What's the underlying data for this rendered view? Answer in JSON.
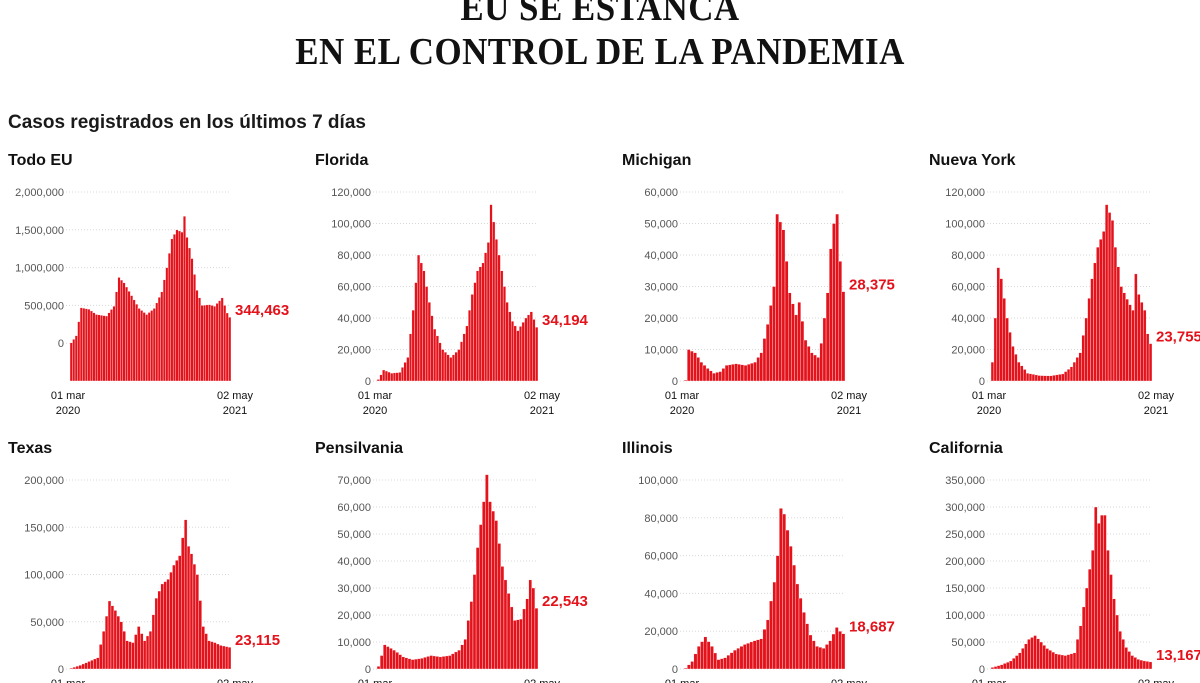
{
  "header": {
    "title_line1": "EU SE ESTANCA",
    "title_line2": "EN EL CONTROL DE LA PANDEMIA",
    "subtitle": "Casos registrados en los últimos 7 días"
  },
  "colors": {
    "bar": "#e3121b",
    "label": "#e3121b"
  },
  "x_axis": {
    "start": "01 mar",
    "start_year": "2020",
    "end": "02 may",
    "end_year": "2021"
  },
  "chart_data": [
    {
      "type": "bar",
      "title": "Todo EU",
      "last_value_label": "344,463",
      "ylim": [
        -500000,
        2000000
      ],
      "yticks": [
        0,
        500000,
        1000000,
        1500000,
        2000000
      ],
      "ytick_labels": [
        "0",
        "500,000",
        "1,000,000",
        "1,500,000",
        "2,000,000"
      ],
      "anchors": [
        [
          0,
          5000
        ],
        [
          2,
          100000
        ],
        [
          4,
          470000
        ],
        [
          7,
          450000
        ],
        [
          10,
          380000
        ],
        [
          14,
          360000
        ],
        [
          17,
          490000
        ],
        [
          19,
          870000
        ],
        [
          21,
          800000
        ],
        [
          24,
          630000
        ],
        [
          27,
          460000
        ],
        [
          30,
          380000
        ],
        [
          33,
          460000
        ],
        [
          36,
          680000
        ],
        [
          38,
          1000000
        ],
        [
          40,
          1380000
        ],
        [
          42,
          1500000
        ],
        [
          44,
          1470000
        ],
        [
          45,
          1680000
        ],
        [
          46,
          1400000
        ],
        [
          48,
          1120000
        ],
        [
          50,
          700000
        ],
        [
          52,
          500000
        ],
        [
          55,
          510000
        ],
        [
          57,
          490000
        ],
        [
          60,
          600000
        ],
        [
          62,
          400000
        ],
        [
          63,
          344463
        ]
      ],
      "values": []
    },
    {
      "type": "bar",
      "title": "Florida",
      "last_value_label": "34,194",
      "ylim": [
        0,
        120000
      ],
      "yticks": [
        0,
        20000,
        40000,
        60000,
        80000,
        100000,
        120000
      ],
      "ytick_labels": [
        "0",
        "20,000",
        "40,000",
        "60,000",
        "80,000",
        "100,000",
        "120,000"
      ],
      "anchors": [
        [
          0,
          1000
        ],
        [
          2,
          7000
        ],
        [
          5,
          5000
        ],
        [
          8,
          5500
        ],
        [
          11,
          15000
        ],
        [
          13,
          45000
        ],
        [
          15,
          80000
        ],
        [
          17,
          70000
        ],
        [
          19,
          50000
        ],
        [
          21,
          33000
        ],
        [
          24,
          20000
        ],
        [
          27,
          15000
        ],
        [
          30,
          20000
        ],
        [
          33,
          35000
        ],
        [
          35,
          55000
        ],
        [
          37,
          70000
        ],
        [
          39,
          75000
        ],
        [
          41,
          88000
        ],
        [
          42,
          112000
        ],
        [
          44,
          90000
        ],
        [
          46,
          70000
        ],
        [
          48,
          50000
        ],
        [
          50,
          38000
        ],
        [
          52,
          32000
        ],
        [
          55,
          40000
        ],
        [
          57,
          44000
        ],
        [
          59,
          34194
        ]
      ],
      "values": []
    },
    {
      "type": "bar",
      "title": "Michigan",
      "last_value_label": "28,375",
      "ylim": [
        0,
        60000
      ],
      "yticks": [
        0,
        10000,
        20000,
        30000,
        40000,
        50000,
        60000
      ],
      "ytick_labels": [
        "0",
        "10,000",
        "20,000",
        "30,000",
        "40,000",
        "50,000",
        "60,000"
      ],
      "anchors": [
        [
          0,
          300
        ],
        [
          1,
          10000
        ],
        [
          3,
          9000
        ],
        [
          5,
          6000
        ],
        [
          7,
          4000
        ],
        [
          9,
          2500
        ],
        [
          11,
          3000
        ],
        [
          13,
          5000
        ],
        [
          16,
          5500
        ],
        [
          19,
          5000
        ],
        [
          22,
          6000
        ],
        [
          24,
          9000
        ],
        [
          26,
          18000
        ],
        [
          28,
          30000
        ],
        [
          29,
          53000
        ],
        [
          31,
          48000
        ],
        [
          33,
          28000
        ],
        [
          35,
          21000
        ],
        [
          36,
          25000
        ],
        [
          38,
          13000
        ],
        [
          40,
          9000
        ],
        [
          42,
          7500
        ],
        [
          43,
          12000
        ],
        [
          45,
          28000
        ],
        [
          46,
          42000
        ],
        [
          47,
          50000
        ],
        [
          48,
          53000
        ],
        [
          49,
          38000
        ],
        [
          50,
          28375
        ]
      ],
      "values": []
    },
    {
      "type": "bar",
      "title": "Nueva York",
      "last_value_label": "23,755",
      "ylim": [
        0,
        120000
      ],
      "yticks": [
        0,
        20000,
        40000,
        60000,
        80000,
        100000,
        120000
      ],
      "ytick_labels": [
        "0",
        "20,000",
        "40,000",
        "60,000",
        "80,000",
        "100,000",
        "120,000"
      ],
      "anchors": [
        [
          0,
          12000
        ],
        [
          1,
          40000
        ],
        [
          2,
          72000
        ],
        [
          3,
          65000
        ],
        [
          5,
          40000
        ],
        [
          7,
          22000
        ],
        [
          9,
          12000
        ],
        [
          12,
          5000
        ],
        [
          16,
          3500
        ],
        [
          20,
          3300
        ],
        [
          24,
          4500
        ],
        [
          27,
          9000
        ],
        [
          30,
          18000
        ],
        [
          32,
          40000
        ],
        [
          34,
          65000
        ],
        [
          36,
          85000
        ],
        [
          38,
          95000
        ],
        [
          39,
          112000
        ],
        [
          41,
          102000
        ],
        [
          42,
          85000
        ],
        [
          44,
          60000
        ],
        [
          46,
          52000
        ],
        [
          48,
          45000
        ],
        [
          49,
          68000
        ],
        [
          50,
          55000
        ],
        [
          52,
          45000
        ],
        [
          53,
          30000
        ],
        [
          54,
          23755
        ]
      ],
      "values": []
    },
    {
      "type": "bar",
      "title": "Texas",
      "last_value_label": "23,115",
      "ylim": [
        0,
        200000
      ],
      "yticks": [
        0,
        50000,
        100000,
        150000,
        200000
      ],
      "ytick_labels": [
        "0",
        "50,000",
        "100,000",
        "150,000",
        "200,000"
      ],
      "anchors": [
        [
          0,
          1000
        ],
        [
          3,
          4000
        ],
        [
          6,
          8000
        ],
        [
          9,
          12000
        ],
        [
          11,
          40000
        ],
        [
          13,
          72000
        ],
        [
          15,
          62000
        ],
        [
          17,
          50000
        ],
        [
          19,
          30000
        ],
        [
          21,
          28000
        ],
        [
          23,
          45000
        ],
        [
          25,
          30000
        ],
        [
          27,
          40000
        ],
        [
          29,
          75000
        ],
        [
          31,
          90000
        ],
        [
          33,
          95000
        ],
        [
          35,
          110000
        ],
        [
          37,
          120000
        ],
        [
          39,
          158000
        ],
        [
          40,
          130000
        ],
        [
          41,
          122000
        ],
        [
          43,
          100000
        ],
        [
          45,
          45000
        ],
        [
          47,
          30000
        ],
        [
          49,
          28000
        ],
        [
          51,
          25000
        ],
        [
          54,
          23115
        ]
      ],
      "values": []
    },
    {
      "type": "bar",
      "title": "Pensilvania",
      "last_value_label": "22,543",
      "ylim": [
        0,
        70000
      ],
      "yticks": [
        0,
        10000,
        20000,
        30000,
        40000,
        50000,
        60000,
        70000
      ],
      "ytick_labels": [
        "0",
        "10,000",
        "20,000",
        "30,000",
        "40,000",
        "50,000",
        "60,000",
        "70,000"
      ],
      "anchors": [
        [
          0,
          1000
        ],
        [
          2,
          9000
        ],
        [
          5,
          7000
        ],
        [
          8,
          4500
        ],
        [
          11,
          3500
        ],
        [
          14,
          4000
        ],
        [
          17,
          5000
        ],
        [
          20,
          4500
        ],
        [
          23,
          5000
        ],
        [
          26,
          7000
        ],
        [
          28,
          11000
        ],
        [
          30,
          25000
        ],
        [
          32,
          45000
        ],
        [
          34,
          62000
        ],
        [
          35,
          72000
        ],
        [
          36,
          62000
        ],
        [
          38,
          55000
        ],
        [
          40,
          38000
        ],
        [
          42,
          28000
        ],
        [
          44,
          18000
        ],
        [
          46,
          18500
        ],
        [
          48,
          26000
        ],
        [
          49,
          33000
        ],
        [
          50,
          30000
        ],
        [
          51,
          22543
        ]
      ],
      "values": []
    },
    {
      "type": "bar",
      "title": "Illinois",
      "last_value_label": "18,687",
      "ylim": [
        0,
        100000
      ],
      "yticks": [
        0,
        20000,
        40000,
        60000,
        80000,
        100000
      ],
      "ytick_labels": [
        "0",
        "20,000",
        "40,000",
        "60,000",
        "80,000",
        "100,000"
      ],
      "anchors": [
        [
          0,
          500
        ],
        [
          2,
          4000
        ],
        [
          4,
          12000
        ],
        [
          6,
          17000
        ],
        [
          8,
          12000
        ],
        [
          10,
          5000
        ],
        [
          12,
          6000
        ],
        [
          15,
          10000
        ],
        [
          18,
          13000
        ],
        [
          21,
          15000
        ],
        [
          23,
          16000
        ],
        [
          25,
          26000
        ],
        [
          27,
          46000
        ],
        [
          28,
          60000
        ],
        [
          29,
          85000
        ],
        [
          30,
          82000
        ],
        [
          32,
          65000
        ],
        [
          34,
          45000
        ],
        [
          36,
          30000
        ],
        [
          38,
          18000
        ],
        [
          40,
          12000
        ],
        [
          42,
          11000
        ],
        [
          44,
          15000
        ],
        [
          46,
          22000
        ],
        [
          47,
          20000
        ],
        [
          48,
          18687
        ]
      ],
      "values": []
    },
    {
      "type": "bar",
      "title": "California",
      "last_value_label": "13,167",
      "ylim": [
        0,
        350000
      ],
      "yticks": [
        0,
        50000,
        100000,
        150000,
        200000,
        250000,
        300000,
        350000
      ],
      "ytick_labels": [
        "0",
        "50,000",
        "100,000",
        "150,000",
        "200,000",
        "250,000",
        "300,000",
        "350,000"
      ],
      "anchors": [
        [
          0,
          3000
        ],
        [
          3,
          8000
        ],
        [
          6,
          15000
        ],
        [
          9,
          30000
        ],
        [
          12,
          55000
        ],
        [
          14,
          62000
        ],
        [
          16,
          50000
        ],
        [
          18,
          38000
        ],
        [
          21,
          28000
        ],
        [
          24,
          25000
        ],
        [
          27,
          30000
        ],
        [
          29,
          80000
        ],
        [
          31,
          150000
        ],
        [
          33,
          220000
        ],
        [
          34,
          300000
        ],
        [
          35,
          270000
        ],
        [
          36,
          285000
        ],
        [
          37,
          285000
        ],
        [
          38,
          220000
        ],
        [
          40,
          130000
        ],
        [
          42,
          70000
        ],
        [
          44,
          40000
        ],
        [
          46,
          25000
        ],
        [
          48,
          18000
        ],
        [
          50,
          15000
        ],
        [
          52,
          13167
        ]
      ],
      "values": []
    }
  ]
}
